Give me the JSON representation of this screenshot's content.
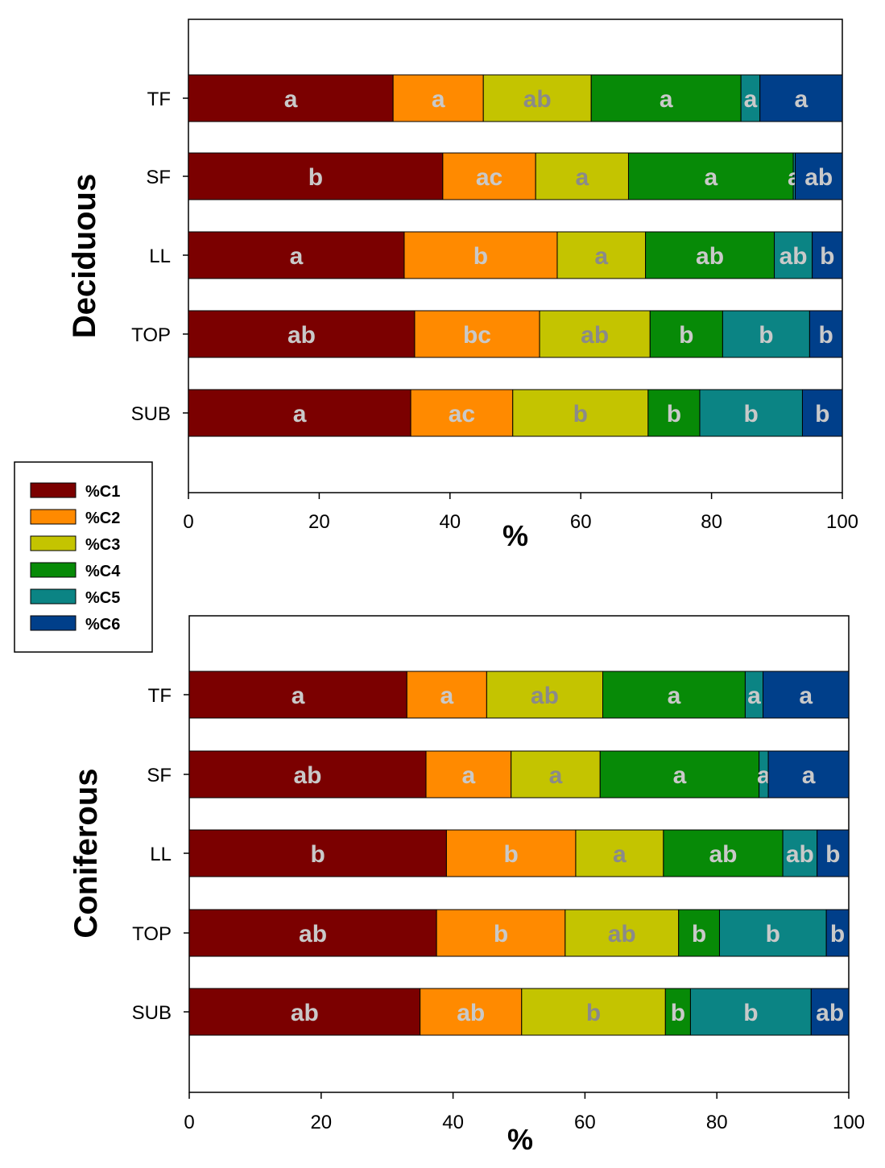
{
  "colors": {
    "C1": "#7b0000",
    "C2": "#ff8a00",
    "C3": "#c4c400",
    "C4": "#078a07",
    "C5": "#0b8484",
    "C6": "#003f8a",
    "label": "#c9c9c9",
    "label_dark": "#8a8a8a"
  },
  "legend": {
    "entries": [
      "%C1",
      "%C2",
      "%C3",
      "%C4",
      "%C5",
      "%C6"
    ]
  },
  "chart_data": [
    {
      "type": "bar",
      "orientation": "horizontal",
      "stacked": true,
      "title": "Deciduous",
      "xlabel": "%",
      "xlim": [
        0,
        100
      ],
      "xticks": [
        "0",
        "20",
        "40",
        "60",
        "80",
        "100"
      ],
      "categories": [
        "TF",
        "SF",
        "LL",
        "TOP",
        "SUB"
      ],
      "series": [
        {
          "name": "%C1",
          "values": [
            31.3,
            38.9,
            33.0,
            34.6,
            34.0
          ],
          "labels": [
            "a",
            "b",
            "a",
            "ab",
            "a"
          ]
        },
        {
          "name": "%C2",
          "values": [
            13.8,
            14.2,
            23.4,
            19.1,
            15.6
          ],
          "labels": [
            "a",
            "ac",
            "b",
            "bc",
            "ac"
          ]
        },
        {
          "name": "%C3",
          "values": [
            16.5,
            14.2,
            13.5,
            16.9,
            20.7
          ],
          "labels": [
            "ab",
            "a",
            "a",
            "ab",
            "b"
          ]
        },
        {
          "name": "%C4",
          "values": [
            22.9,
            25.2,
            19.7,
            11.1,
            7.9
          ],
          "labels": [
            "a",
            "a",
            "ab",
            "b",
            "b"
          ]
        },
        {
          "name": "%C5",
          "values": [
            2.9,
            0.3,
            5.8,
            13.3,
            15.7
          ],
          "labels": [
            "a",
            "a",
            "ab",
            "b",
            "b"
          ]
        },
        {
          "name": "%C6",
          "values": [
            12.6,
            7.2,
            4.6,
            5.0,
            6.1
          ],
          "labels": [
            "a",
            "ab",
            "b",
            "b",
            "b"
          ]
        }
      ]
    },
    {
      "type": "bar",
      "orientation": "horizontal",
      "stacked": true,
      "title": "Coniferous",
      "xlabel": "%",
      "xlim": [
        0,
        100
      ],
      "xticks": [
        "0",
        "20",
        "40",
        "60",
        "80",
        "100"
      ],
      "categories": [
        "TF",
        "SF",
        "LL",
        "TOP",
        "SUB"
      ],
      "series": [
        {
          "name": "%C1",
          "values": [
            33.0,
            35.9,
            39.0,
            37.5,
            35.0
          ],
          "labels": [
            "a",
            "ab",
            "b",
            "ab",
            "ab"
          ]
        },
        {
          "name": "%C2",
          "values": [
            12.1,
            12.9,
            19.6,
            19.5,
            15.4
          ],
          "labels": [
            "a",
            "a",
            "b",
            "b",
            "ab"
          ]
        },
        {
          "name": "%C3",
          "values": [
            17.6,
            13.5,
            13.3,
            17.2,
            21.8
          ],
          "labels": [
            "ab",
            "a",
            "a",
            "ab",
            "b"
          ]
        },
        {
          "name": "%C4",
          "values": [
            21.6,
            24.1,
            18.1,
            6.2,
            3.8
          ],
          "labels": [
            "a",
            "a",
            "ab",
            "b",
            "b"
          ]
        },
        {
          "name": "%C5",
          "values": [
            2.7,
            1.4,
            5.2,
            16.2,
            18.3
          ],
          "labels": [
            "a",
            "a",
            "ab",
            "b",
            "b"
          ]
        },
        {
          "name": "%C6",
          "values": [
            13.0,
            12.2,
            4.8,
            3.4,
            5.7
          ],
          "labels": [
            "a",
            "a",
            "b",
            "b",
            "ab"
          ]
        }
      ]
    }
  ]
}
